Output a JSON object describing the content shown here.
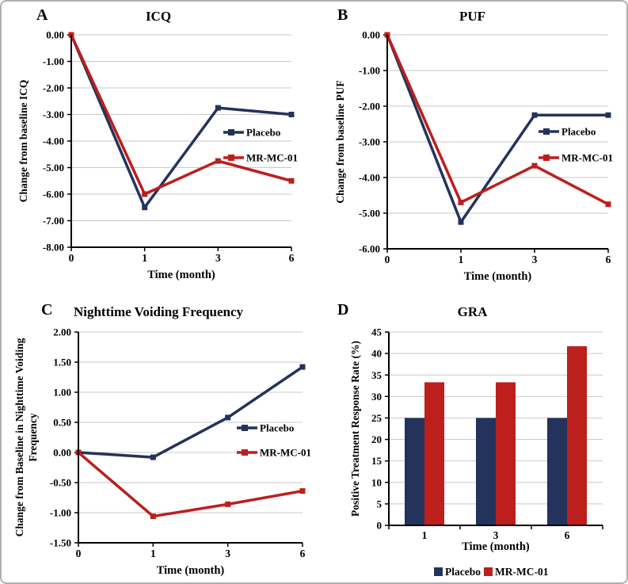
{
  "colors": {
    "placebo": "#24335B",
    "mr_mc_01": "#BC1F1C",
    "gridline": "#C9C9C9",
    "axis": "#000000",
    "background": "#ffffff",
    "frame_border": "#aeaeae"
  },
  "chart_data": [
    {
      "panel": "A",
      "type": "line",
      "title": "ICQ",
      "xlabel": "Time (month)",
      "ylabel_lines": [
        "Change from baseline ICQ"
      ],
      "x_categories": [
        "0",
        "1",
        "3",
        "6"
      ],
      "y_tick_labels": [
        "0.00",
        "-1.00",
        "-2.00",
        "-3.00",
        "-4.00",
        "-5.00",
        "-6.00",
        "-7.00",
        "-8.00"
      ],
      "ylim": [
        -8,
        0
      ],
      "grid": true,
      "legend_position": "inside-right",
      "series": [
        {
          "name": "Placebo",
          "color": "#24335B",
          "values": [
            0,
            -6.5,
            -2.75,
            -3.0
          ]
        },
        {
          "name": "MR-MC-01",
          "color": "#BC1F1C",
          "values": [
            0,
            -6.0,
            -4.75,
            -5.5
          ]
        }
      ]
    },
    {
      "panel": "B",
      "type": "line",
      "title": "PUF",
      "xlabel": "Time (month)",
      "ylabel_lines": [
        "Change from baseline PUF"
      ],
      "x_categories": [
        "0",
        "1",
        "3",
        "6"
      ],
      "y_tick_labels": [
        "0.00",
        "-1.00",
        "-2.00",
        "-3.00",
        "-4.00",
        "-5.00",
        "-6.00"
      ],
      "ylim": [
        -6,
        0
      ],
      "grid": true,
      "legend_position": "inside-right",
      "series": [
        {
          "name": "Placebo",
          "color": "#24335B",
          "values": [
            0,
            -5.25,
            -2.25,
            -2.25
          ]
        },
        {
          "name": "MR-MC-01",
          "color": "#BC1F1C",
          "values": [
            0,
            -4.7,
            -3.67,
            -4.75
          ]
        }
      ]
    },
    {
      "panel": "C",
      "type": "line",
      "title": "Nighttime Voiding Frequency",
      "xlabel": "Time (month)",
      "ylabel_lines": [
        "Change from Baseline in Nighttime Voiding",
        "Frequency"
      ],
      "x_categories": [
        "0",
        "1",
        "3",
        "6"
      ],
      "y_tick_labels": [
        "2.00",
        "1.50",
        "1.00",
        "0.50",
        "0.00",
        "-0.50",
        "-1.00",
        "-1.50"
      ],
      "ylim": [
        -1.5,
        2
      ],
      "grid": true,
      "legend_position": "inside-right",
      "series": [
        {
          "name": "Placebo",
          "color": "#24335B",
          "values": [
            0,
            -0.08,
            0.58,
            1.42
          ]
        },
        {
          "name": "MR-MC-01",
          "color": "#BC1F1C",
          "values": [
            0,
            -1.06,
            -0.86,
            -0.64
          ]
        }
      ]
    },
    {
      "panel": "D",
      "type": "bar",
      "title": "GRA",
      "xlabel": "Time (month)",
      "ylabel_lines": [
        "Positive Treatment Response Rate (%)"
      ],
      "x_categories": [
        "1",
        "3",
        "6"
      ],
      "y_tick_labels": [
        "45",
        "40",
        "35",
        "30",
        "25",
        "20",
        "15",
        "10",
        "5",
        "0"
      ],
      "ylim": [
        0,
        45
      ],
      "grid": true,
      "legend_position": "bottom",
      "series": [
        {
          "name": "Placebo",
          "color": "#24335B",
          "values": [
            25,
            25,
            25
          ]
        },
        {
          "name": "MR-MC-01",
          "color": "#BC1F1C",
          "values": [
            33.3,
            33.3,
            41.7
          ]
        }
      ]
    }
  ]
}
